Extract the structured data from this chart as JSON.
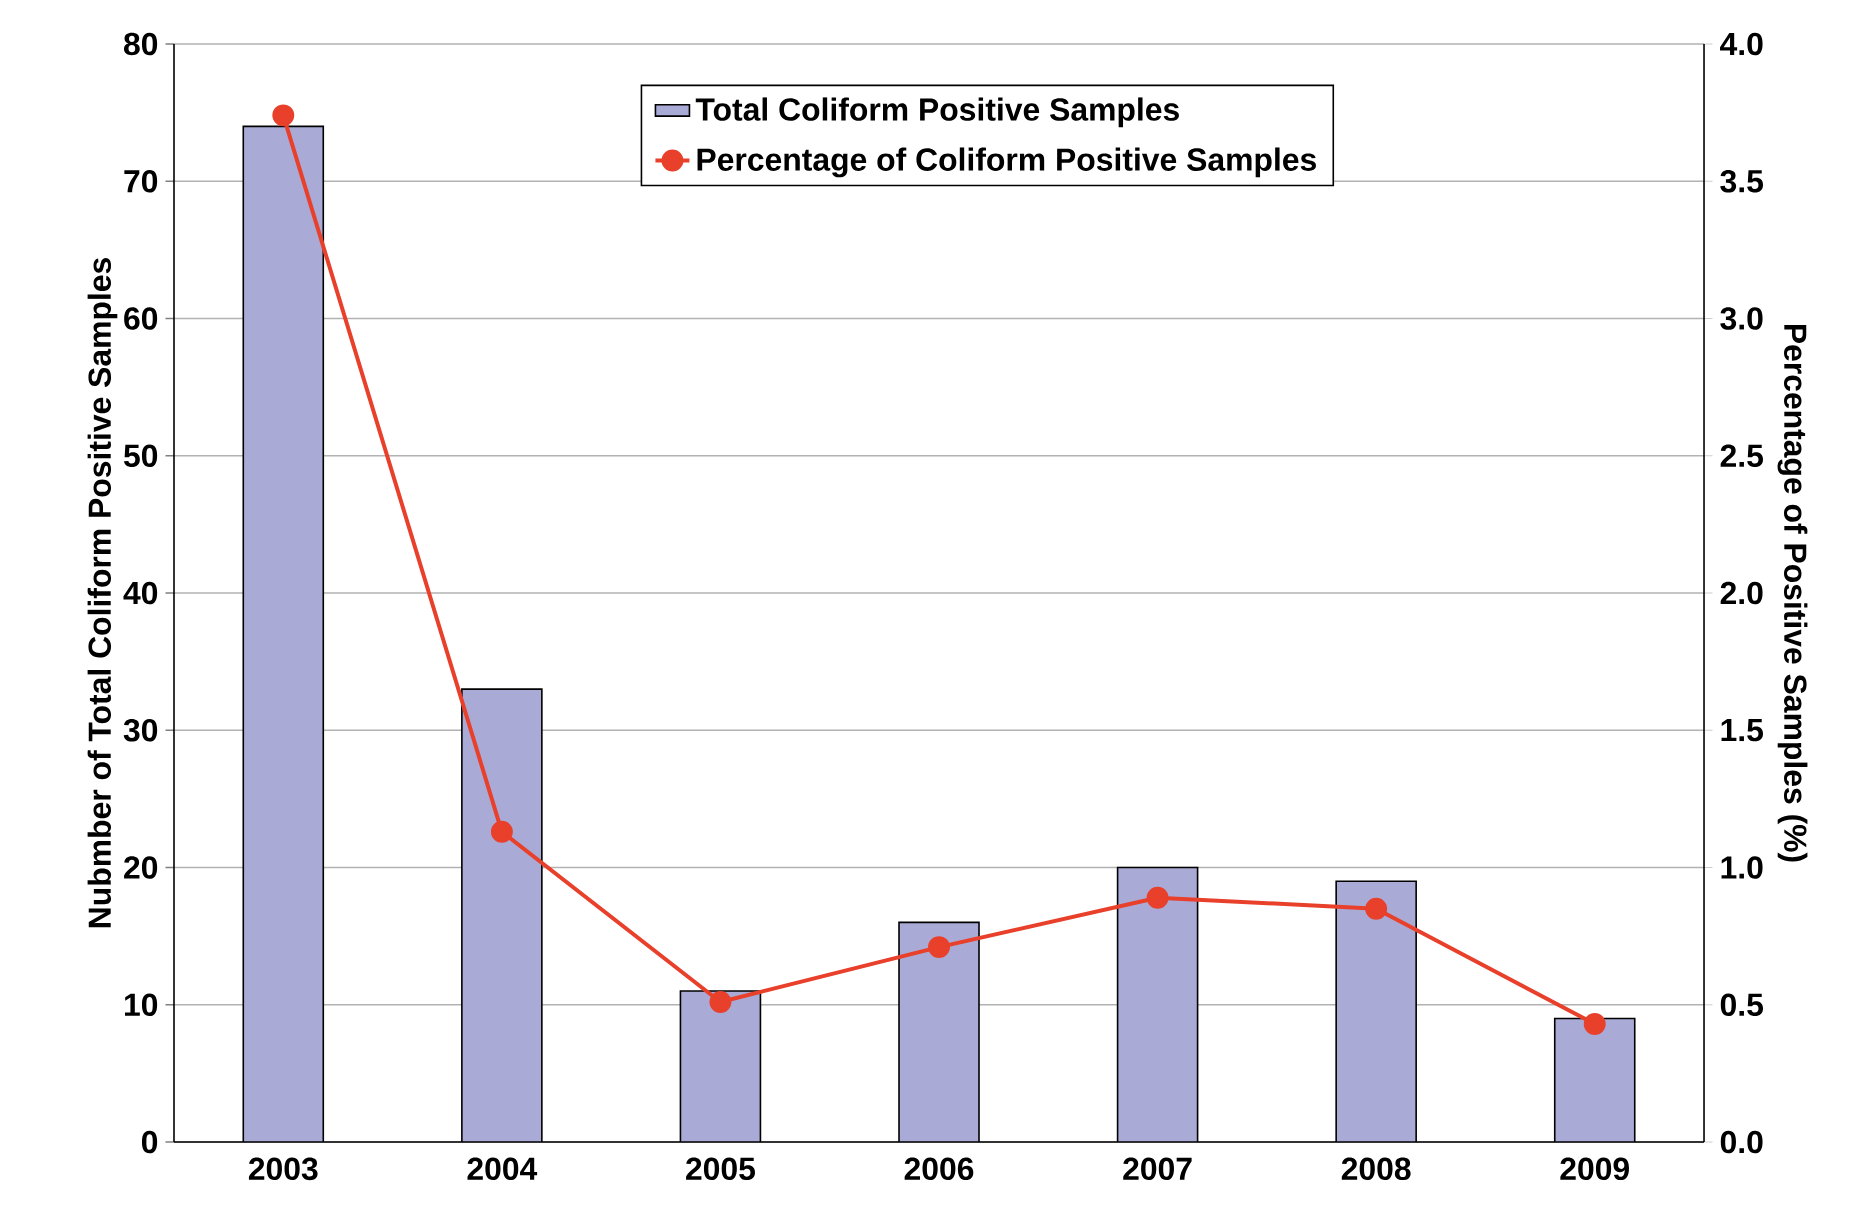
{
  "chart_data": {
    "type": "bar",
    "categories": [
      "2003",
      "2004",
      "2005",
      "2006",
      "2007",
      "2008",
      "2009"
    ],
    "ylabel": "Nubmber of Total Coliform Positive Samples",
    "y2label": "Percentage of Positive Samples (%)",
    "series": [
      {
        "name": "Total Coliform Positive Samples",
        "color": "#aaaad6",
        "values": [
          74,
          33,
          11,
          16,
          20,
          19,
          9
        ]
      },
      {
        "name": "Percentage of Coliform Positive Samples",
        "type": "line",
        "axis": "y2",
        "color": "#e8402a",
        "values": [
          3.74,
          1.13,
          0.51,
          0.71,
          0.89,
          0.85,
          0.43
        ]
      }
    ],
    "ylim": [
      0,
      80
    ],
    "yticks": [
      0,
      10,
      20,
      30,
      40,
      50,
      60,
      70,
      80
    ],
    "y2lim": [
      0,
      4
    ],
    "y2ticks": [
      {
        "value": 0,
        "label": "0.0"
      },
      {
        "value": 0.5,
        "label": "0.5"
      },
      {
        "value": 1,
        "label": "1.0"
      },
      {
        "value": 1.5,
        "label": "1.5"
      },
      {
        "value": 2,
        "label": "2.0"
      },
      {
        "value": 2.5,
        "label": "2.5"
      },
      {
        "value": 3,
        "label": "3.0"
      },
      {
        "value": 3.5,
        "label": "3.5"
      },
      {
        "value": 4,
        "label": "4.0"
      }
    ],
    "grid": "y",
    "legend": "top right",
    "marker": "circle",
    "line_style": "solid"
  }
}
